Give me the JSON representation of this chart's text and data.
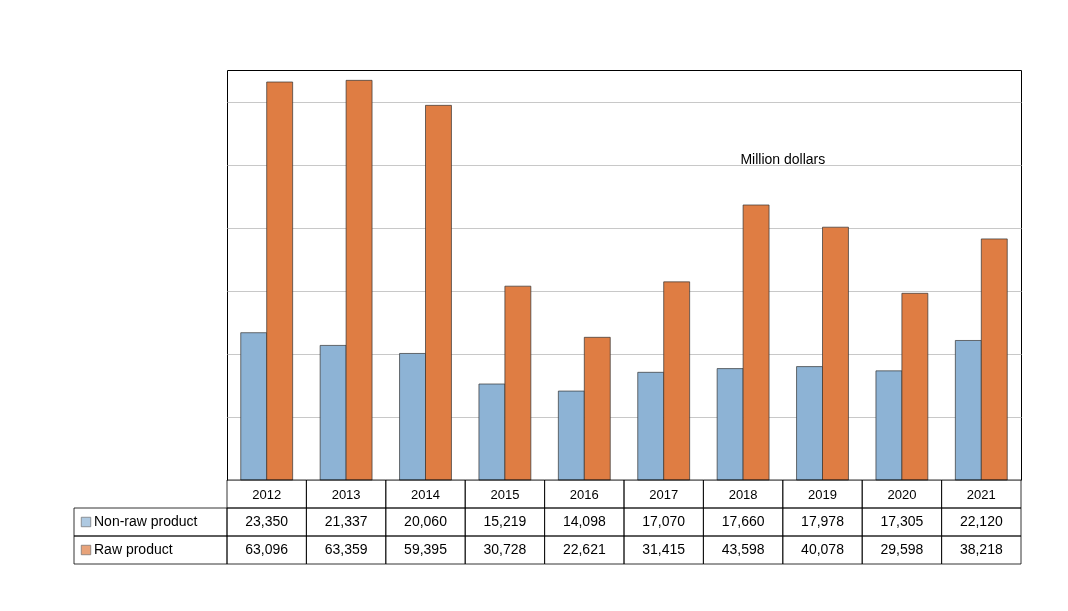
{
  "chart_data": {
    "type": "bar",
    "categories": [
      "2012",
      "2013",
      "2014",
      "2015",
      "2016",
      "2017",
      "2018",
      "2019",
      "2020",
      "2021"
    ],
    "series": [
      {
        "name": "Non-raw product",
        "color": "#8db3d5",
        "values": [
          23350,
          21337,
          20060,
          15219,
          14098,
          17070,
          17660,
          17978,
          17305,
          22120
        ],
        "value_labels": [
          "23,350",
          "21,337",
          "20,060",
          "15,219",
          "14,098",
          "17,070",
          "17,660",
          "17,978",
          "17,305",
          "22,120"
        ]
      },
      {
        "name": "Raw product",
        "color": "#df7d43",
        "values": [
          63096,
          63359,
          59395,
          30728,
          22621,
          31415,
          43598,
          40078,
          29598,
          38218
        ],
        "value_labels": [
          "63,096",
          "63,359",
          "59,395",
          "30,728",
          "22,621",
          "31,415",
          "43,598",
          "40,078",
          "29,598",
          "38,218"
        ]
      }
    ],
    "grid": "y",
    "tick_labels": "x",
    "legend": "bottom left",
    "annotations": [
      "Million dollars"
    ]
  }
}
